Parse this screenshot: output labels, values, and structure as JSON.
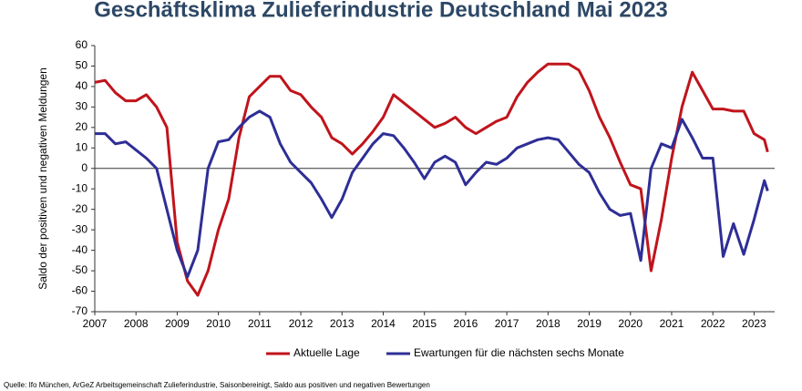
{
  "chart_data": {
    "type": "line",
    "title": "Geschäftsklima Zulieferindustrie Deutschland Mai 2023",
    "y_label": "Saldo der positiven und negativen Meldungen",
    "source": "Quelle: Ifo München, ArGeZ Arbeitsgemeinschaft Zulieferindustrie, Saisonbereinigt, Saldo aus positiven und negativen Bewertungen",
    "x": [
      2007.0,
      2007.25,
      2007.5,
      2007.75,
      2008.0,
      2008.25,
      2008.5,
      2008.75,
      2009.0,
      2009.25,
      2009.5,
      2009.75,
      2010.0,
      2010.25,
      2010.5,
      2010.75,
      2011.0,
      2011.25,
      2011.5,
      2011.75,
      2012.0,
      2012.25,
      2012.5,
      2012.75,
      2013.0,
      2013.25,
      2013.5,
      2013.75,
      2014.0,
      2014.25,
      2014.5,
      2014.75,
      2015.0,
      2015.25,
      2015.5,
      2015.75,
      2016.0,
      2016.25,
      2016.5,
      2016.75,
      2017.0,
      2017.25,
      2017.5,
      2017.75,
      2018.0,
      2018.25,
      2018.5,
      2018.75,
      2019.0,
      2019.25,
      2019.5,
      2019.75,
      2020.0,
      2020.25,
      2020.5,
      2020.75,
      2021.0,
      2021.25,
      2021.5,
      2021.75,
      2022.0,
      2022.25,
      2022.5,
      2022.75,
      2023.0,
      2023.25,
      2023.33
    ],
    "series": [
      {
        "name": "Aktuelle Lage",
        "color": "#c0141c",
        "values": [
          42,
          43,
          37,
          33,
          33,
          36,
          30,
          20,
          -36,
          -55,
          -62,
          -50,
          -30,
          -15,
          15,
          35,
          40,
          45,
          45,
          38,
          36,
          30,
          25,
          15,
          12,
          7,
          12,
          18,
          25,
          36,
          32,
          28,
          24,
          20,
          22,
          25,
          20,
          17,
          20,
          23,
          25,
          35,
          42,
          47,
          51,
          51,
          51,
          48,
          38,
          25,
          15,
          3,
          -8,
          -10,
          -50,
          -25,
          5,
          30,
          47,
          38,
          29,
          29,
          28,
          28,
          17,
          14,
          8
        ]
      },
      {
        "name": "Ewartungen für die nächsten sechs Monate",
        "color": "#2e2e96",
        "values": [
          17,
          17,
          12,
          13,
          9,
          5,
          0,
          -20,
          -40,
          -53,
          -40,
          0,
          13,
          14,
          20,
          25,
          28,
          25,
          12,
          3,
          -2,
          -7,
          -15,
          -24,
          -15,
          -2,
          5,
          12,
          17,
          16,
          10,
          3,
          -5,
          3,
          6,
          3,
          -8,
          -2,
          3,
          2,
          5,
          10,
          12,
          14,
          15,
          14,
          8,
          2,
          -2,
          -12,
          -20,
          -23,
          -22,
          -45,
          0,
          12,
          10,
          24,
          15,
          5,
          5,
          -43,
          -27,
          -42,
          -25,
          -6,
          -11
        ]
      }
    ],
    "xlim": [
      2007,
      2023.5
    ],
    "xticks": [
      2007,
      2008,
      2009,
      2010,
      2011,
      2012,
      2013,
      2014,
      2015,
      2016,
      2017,
      2018,
      2019,
      2020,
      2021,
      2022,
      2023
    ],
    "ylim": [
      -70,
      60
    ],
    "yticks": [
      -70,
      -60,
      -50,
      -40,
      -30,
      -20,
      -10,
      0,
      10,
      20,
      30,
      40,
      50,
      60
    ],
    "grid": false,
    "legend": "bottom"
  }
}
